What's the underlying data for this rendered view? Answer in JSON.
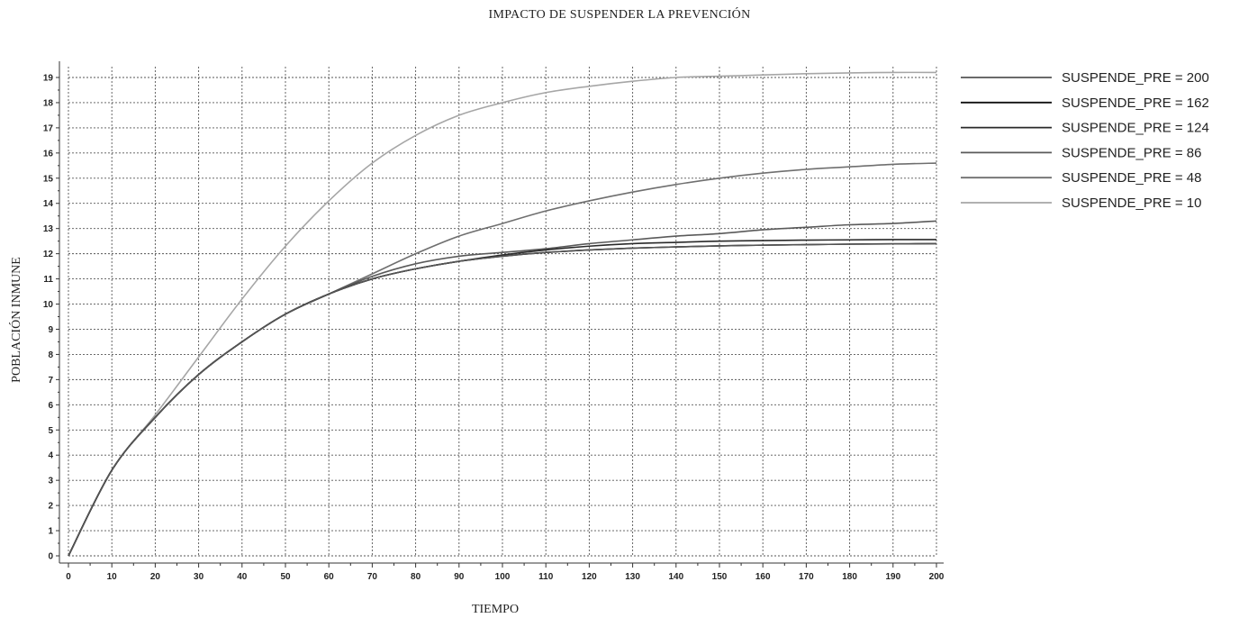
{
  "chart_data": {
    "type": "line",
    "title": "IMPACTO DE SUSPENDER LA PREVENCIÓN",
    "xlabel": "TIEMPO",
    "ylabel": "POBLACIÓN INMUNE",
    "xlim": [
      0,
      200
    ],
    "ylim": [
      0,
      19
    ],
    "xticks": [
      0,
      10,
      20,
      30,
      40,
      50,
      60,
      70,
      80,
      90,
      100,
      110,
      120,
      130,
      140,
      150,
      160,
      170,
      180,
      190,
      200
    ],
    "yticks": [
      0,
      1,
      2,
      3,
      4,
      5,
      6,
      7,
      8,
      9,
      10,
      11,
      12,
      13,
      14,
      15,
      16,
      17,
      18,
      19
    ],
    "grid": true,
    "legend_position": "right",
    "x": [
      0,
      10,
      20,
      30,
      40,
      50,
      60,
      70,
      80,
      90,
      100,
      110,
      120,
      130,
      140,
      150,
      160,
      170,
      180,
      190,
      200
    ],
    "series": [
      {
        "name": "SUSPENDE_PRE = 200",
        "color": "#555555",
        "values": [
          0,
          3.4,
          5.5,
          7.2,
          8.5,
          9.6,
          10.4,
          11.0,
          11.4,
          11.7,
          11.9,
          12.05,
          12.15,
          12.22,
          12.27,
          12.31,
          12.34,
          12.36,
          12.38,
          12.39,
          12.4
        ]
      },
      {
        "name": "SUSPENDE_PRE = 162",
        "color": "#111111",
        "values": [
          0,
          3.4,
          5.5,
          7.2,
          8.5,
          9.6,
          10.4,
          11.0,
          11.4,
          11.7,
          11.9,
          12.05,
          12.15,
          12.22,
          12.27,
          12.31,
          12.34,
          12.36,
          12.38,
          12.39,
          12.4
        ]
      },
      {
        "name": "SUSPENDE_PRE = 124",
        "color": "#2a2a2a",
        "values": [
          0,
          3.4,
          5.5,
          7.2,
          8.5,
          9.6,
          10.4,
          11.0,
          11.4,
          11.7,
          11.95,
          12.15,
          12.3,
          12.4,
          12.45,
          12.5,
          12.52,
          12.54,
          12.55,
          12.56,
          12.56
        ]
      },
      {
        "name": "SUSPENDE_PRE = 86",
        "color": "#5a5a5a",
        "values": [
          0,
          3.4,
          5.5,
          7.2,
          8.5,
          9.6,
          10.4,
          11.1,
          11.6,
          11.9,
          12.05,
          12.2,
          12.4,
          12.55,
          12.7,
          12.8,
          12.95,
          13.05,
          13.15,
          13.2,
          13.3
        ]
      },
      {
        "name": "SUSPENDE_PRE = 48",
        "color": "#6f6f6f",
        "values": [
          0,
          3.4,
          5.5,
          7.2,
          8.5,
          9.6,
          10.4,
          11.2,
          12.0,
          12.7,
          13.2,
          13.7,
          14.1,
          14.45,
          14.75,
          15.0,
          15.2,
          15.35,
          15.45,
          15.55,
          15.6
        ]
      },
      {
        "name": "SUSPENDE_PRE = 10",
        "color": "#a6a6a6",
        "values": [
          0,
          3.4,
          5.6,
          7.9,
          10.2,
          12.3,
          14.1,
          15.6,
          16.7,
          17.5,
          18.0,
          18.4,
          18.65,
          18.85,
          19.0,
          19.05,
          19.1,
          19.15,
          19.18,
          19.2,
          19.2
        ]
      }
    ]
  }
}
